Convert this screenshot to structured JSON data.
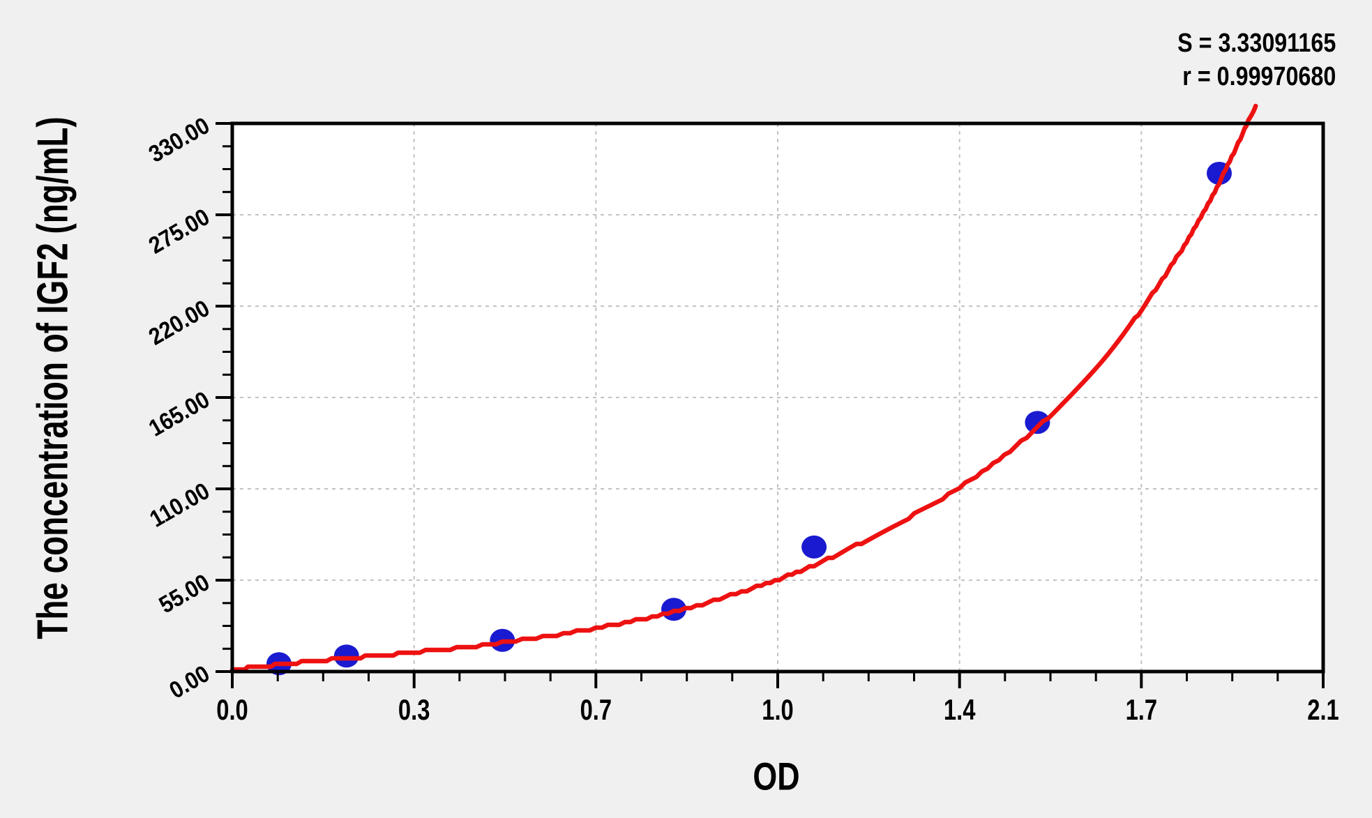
{
  "chart_data": {
    "type": "scatter",
    "title": "",
    "xlabel": "OD",
    "ylabel": "The concentration of IGF2 (ng/mL)",
    "stats": {
      "s_label": "S = 3.33091165",
      "r_label": "r = 0.99970680"
    },
    "xlim": [
      0,
      2.1
    ],
    "ylim": [
      0,
      330
    ],
    "x_tick_labels": [
      "0.0",
      "0.3",
      "0.7",
      "1.0",
      "1.4",
      "1.7",
      "2.1"
    ],
    "y_tick_labels": [
      "0.00",
      "55.00",
      "110.00",
      "165.00",
      "220.00",
      "275.00",
      "330.00"
    ],
    "minor_ticks_per_interval": 3,
    "grid": true,
    "legend_position": "none",
    "series": [
      {
        "name": "standard-points",
        "type": "scatter",
        "points": [
          {
            "od": 0.09,
            "concentration": 4.69
          },
          {
            "od": 0.22,
            "concentration": 9.38
          },
          {
            "od": 0.52,
            "concentration": 18.75
          },
          {
            "od": 0.85,
            "concentration": 37.5
          },
          {
            "od": 1.12,
            "concentration": 75
          },
          {
            "od": 1.55,
            "concentration": 150
          },
          {
            "od": 1.9,
            "concentration": 300
          }
        ]
      },
      {
        "name": "fitted-curve",
        "type": "line",
        "anchors": [
          [
            0,
            1
          ],
          [
            0.09,
            4.2
          ],
          [
            0.22,
            8
          ],
          [
            0.35,
            11.5
          ],
          [
            0.52,
            17.5
          ],
          [
            0.7,
            26
          ],
          [
            0.85,
            36
          ],
          [
            1.0,
            50
          ],
          [
            1.12,
            64
          ],
          [
            1.25,
            84
          ],
          [
            1.4,
            111
          ],
          [
            1.55,
            147
          ],
          [
            1.69,
            193
          ],
          [
            1.79,
            236
          ],
          [
            1.86,
            271
          ],
          [
            1.92,
            307
          ],
          [
            1.97,
            341
          ]
        ]
      }
    ],
    "colors": {
      "point": "#1a1ad0",
      "curve": "#ed1111",
      "axis": "#000000",
      "grid": "#c2c2c2",
      "plot_bg": "#ffffff",
      "page_bg": "#f0f0f0",
      "text": "#000000"
    }
  }
}
